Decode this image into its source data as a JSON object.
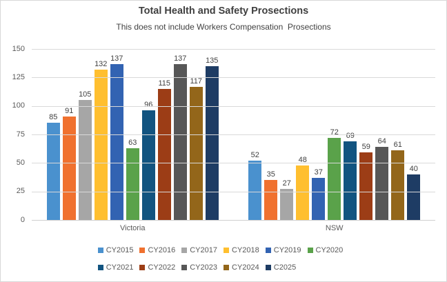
{
  "title": "Total Health and Safety Prosections",
  "subtitle": "This does not include Workers Compensation  Prosections",
  "chart_data": {
    "type": "bar",
    "categories": [
      "Victoria",
      "NSW"
    ],
    "series": [
      {
        "name": "CY2015",
        "color": "#4a91ce",
        "values": [
          85,
          52
        ]
      },
      {
        "name": "CY2016",
        "color": "#f0712f",
        "values": [
          91,
          35
        ]
      },
      {
        "name": "CY2017",
        "color": "#a6a6a6",
        "values": [
          105,
          27
        ]
      },
      {
        "name": "CY2018",
        "color": "#ffbf2f",
        "values": [
          132,
          48
        ]
      },
      {
        "name": "CY2019",
        "color": "#3263b2",
        "values": [
          137,
          37
        ]
      },
      {
        "name": "CY2020",
        "color": "#5aa24a",
        "values": [
          63,
          72
        ]
      },
      {
        "name": "CY2021",
        "color": "#125480",
        "values": [
          96,
          69
        ]
      },
      {
        "name": "CY2022",
        "color": "#9c3d16",
        "values": [
          115,
          59
        ]
      },
      {
        "name": "CY2023",
        "color": "#575757",
        "values": [
          137,
          64
        ]
      },
      {
        "name": "CY2024",
        "color": "#93661a",
        "values": [
          117,
          61
        ]
      },
      {
        "name": "C2025",
        "color": "#1e3c64",
        "values": [
          135,
          40
        ]
      }
    ],
    "ylim": [
      0,
      150
    ],
    "ytick_step": 25,
    "grid": true,
    "legend_position": "bottom",
    "legend_wrap": 6,
    "colors": {
      "gridline": "#d9d9d9",
      "axis_line": "#cfcfcf",
      "tick_text": "#595959",
      "data_label_text": "#404040",
      "title_text": "#3f3f3f"
    }
  }
}
